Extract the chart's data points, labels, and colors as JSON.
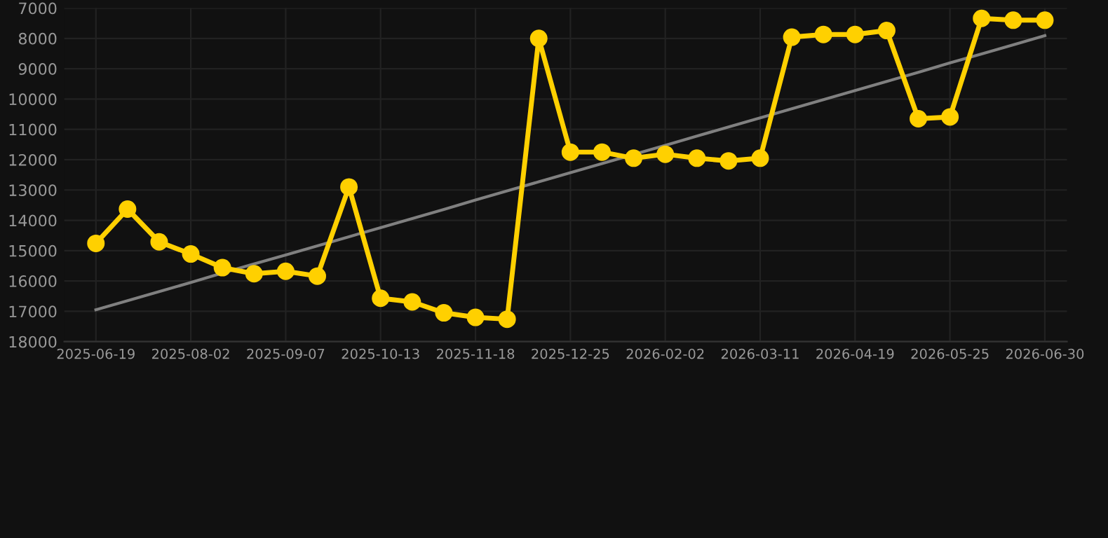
{
  "chart_data": {
    "type": "line",
    "categories": [
      "2025-06-19",
      null,
      null,
      "2025-08-02",
      null,
      null,
      "2025-09-07",
      null,
      null,
      "2025-10-13",
      null,
      null,
      "2025-11-18",
      null,
      null,
      "2025-12-25",
      null,
      null,
      "2026-02-02",
      null,
      null,
      "2026-03-11",
      null,
      null,
      "2026-04-19",
      null,
      null,
      "2026-05-25",
      null,
      null,
      "2026-06-30"
    ],
    "series": [
      {
        "color": "#ffd000",
        "marker": "circle",
        "values": [
          14760,
          13630,
          14710,
          15110,
          15560,
          15760,
          15680,
          15840,
          12900,
          16570,
          16690,
          17050,
          17200,
          17260,
          8000,
          11750,
          11750,
          11950,
          11820,
          11950,
          12040,
          11950,
          7960,
          7870,
          7870,
          7740,
          10650,
          10590,
          7340,
          7400,
          7400
        ]
      },
      {
        "type": "line",
        "color": "#808080",
        "marker": "none",
        "values": [
          16950,
          16650,
          16350,
          16050,
          15740,
          15440,
          15140,
          14840,
          14540,
          14240,
          13940,
          13640,
          13330,
          13030,
          12730,
          12430,
          12130,
          11830,
          11530,
          11220,
          10920,
          10620,
          10320,
          10020,
          9720,
          9420,
          9120,
          8810,
          8510,
          8210,
          7910
        ]
      }
    ],
    "ylim": [
      18000,
      7000
    ],
    "yticks": [
      7000,
      8000,
      9000,
      10000,
      11000,
      12000,
      13000,
      14000,
      15000,
      16000,
      17000,
      18000
    ],
    "grid": true
  }
}
